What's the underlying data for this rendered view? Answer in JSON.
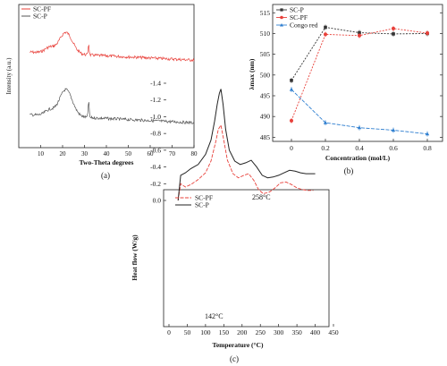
{
  "chart_data": [
    {
      "type": "line",
      "panel_label": "(a)",
      "xlabel": "Two-Theta  degrees",
      "ylabel": "Intensity (a.u.)",
      "xlim": [
        0,
        80
      ],
      "xticks": [
        "10",
        "20",
        "30",
        "40",
        "50",
        "60",
        "70",
        "80"
      ],
      "legend": "top-left",
      "series": [
        {
          "name": "SC-PF",
          "color": "#e8403a"
        },
        {
          "name": "SC-P",
          "color": "#555555"
        }
      ],
      "notes": "XRD diffractograms; broad hump near 21°, sharp peak near 32°; curves vertically offset"
    },
    {
      "type": "line",
      "panel_label": "(b)",
      "xlabel": "Concentration (mol/L)",
      "ylabel": "λmax (nm)",
      "xticks": [
        "0",
        "0.2",
        "0.4",
        "0.6",
        "0.8"
      ],
      "yticks": [
        "485",
        "490",
        "495",
        "500",
        "505",
        "510",
        "515"
      ],
      "ylim": [
        484,
        517
      ],
      "legend": "top-left",
      "x": [
        0,
        0.2,
        0.4,
        0.6,
        0.8
      ],
      "series": [
        {
          "name": "SC-P",
          "color": "#333333",
          "values": [
            498.7,
            511.5,
            510.2,
            509.9,
            510.0
          ]
        },
        {
          "name": "SC-PF",
          "color": "#e8403a",
          "values": [
            489.0,
            509.8,
            509.5,
            511.2,
            510.1
          ]
        },
        {
          "name": "Congo red",
          "color": "#2f7fd0",
          "values": [
            496.5,
            488.5,
            487.3,
            486.7,
            485.8
          ]
        }
      ]
    },
    {
      "type": "line",
      "panel_label": "(c)",
      "xlabel": "Temperature (°C)",
      "ylabel": "Heat flow (W/g)",
      "xlim": [
        0,
        450
      ],
      "ylim": [
        -1.45,
        0.05
      ],
      "xticks": [
        "0",
        "50",
        "100",
        "150",
        "200",
        "250",
        "300",
        "350",
        "400",
        "450"
      ],
      "yticks": [
        "0.0",
        "-0.2",
        "-0.4",
        "-0.6",
        "-0.8",
        "-1.0",
        "-1.2",
        "-1.4"
      ],
      "legend": "top-left",
      "annotations": [
        {
          "text": "258°C",
          "x": 258,
          "y": -0.1
        },
        {
          "text": "142°C",
          "x": 142,
          "y": -1.35
        }
      ],
      "series": [
        {
          "name": "SC-PF",
          "color": "#e8403a",
          "x": [
            25,
            32,
            45,
            60,
            80,
            100,
            115,
            128,
            135,
            142,
            150,
            160,
            175,
            190,
            205,
            218,
            232,
            245,
            258,
            275,
            290,
            305,
            320,
            335,
            350,
            365,
            380,
            395
          ],
          "values": [
            0.0,
            -0.2,
            -0.16,
            -0.19,
            -0.25,
            -0.33,
            -0.47,
            -0.7,
            -0.85,
            -0.9,
            -0.72,
            -0.48,
            -0.32,
            -0.27,
            -0.3,
            -0.32,
            -0.24,
            -0.13,
            -0.08,
            -0.1,
            -0.15,
            -0.21,
            -0.22,
            -0.19,
            -0.15,
            -0.13,
            -0.12,
            -0.12
          ]
        },
        {
          "name": "SC-P",
          "color": "#222222",
          "x": [
            25,
            32,
            45,
            60,
            80,
            100,
            115,
            125,
            132,
            138,
            142,
            148,
            155,
            165,
            180,
            195,
            210,
            225,
            240,
            255,
            270,
            285,
            300,
            315,
            330,
            345,
            360,
            375,
            390,
            400
          ],
          "values": [
            0.0,
            -0.3,
            -0.33,
            -0.38,
            -0.43,
            -0.55,
            -0.72,
            -0.95,
            -1.15,
            -1.28,
            -1.33,
            -1.15,
            -0.85,
            -0.6,
            -0.47,
            -0.43,
            -0.45,
            -0.48,
            -0.4,
            -0.3,
            -0.27,
            -0.28,
            -0.3,
            -0.33,
            -0.36,
            -0.35,
            -0.33,
            -0.32,
            -0.32,
            -0.32
          ]
        }
      ]
    }
  ]
}
